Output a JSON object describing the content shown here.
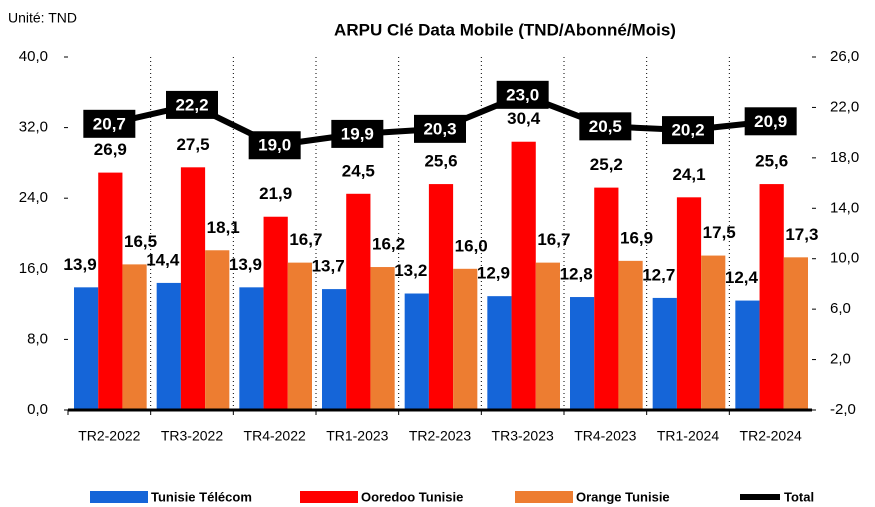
{
  "chart_data": {
    "type": "bar",
    "title": "ARPU Clé Data Mobile (TND/Abonné/Mois)",
    "subtitle": "Unité: TND",
    "categories": [
      "TR2-2022",
      "TR3-2022",
      "TR4-2022",
      "TR1-2023",
      "TR2-2023",
      "TR3-2023",
      "TR4-2023",
      "TR1-2024",
      "TR2-2024"
    ],
    "series": [
      {
        "name": "Tunisie Télécom",
        "color": "#1565d8",
        "values": [
          13.9,
          14.4,
          13.9,
          13.7,
          13.2,
          12.9,
          12.8,
          12.7,
          12.4
        ],
        "value_labels": [
          "13,9",
          "14,4",
          "13,9",
          "13,7",
          "13,2",
          "12,9",
          "12,8",
          "12,7",
          "12,4"
        ]
      },
      {
        "name": "Ooredoo Tunisie",
        "color": "#ff0000",
        "values": [
          26.9,
          27.5,
          21.9,
          24.5,
          25.6,
          30.4,
          25.2,
          24.1,
          25.6
        ],
        "value_labels": [
          "26,9",
          "27,5",
          "21,9",
          "24,5",
          "25,6",
          "30,4",
          "25,2",
          "24,1",
          "25,6"
        ]
      },
      {
        "name": "Orange Tunisie",
        "color": "#ed7d31",
        "values": [
          16.5,
          18.1,
          16.7,
          16.2,
          16.0,
          16.7,
          16.9,
          17.5,
          17.3
        ],
        "value_labels": [
          "16,5",
          "18,1",
          "16,7",
          "16,2",
          "16,0",
          "16,7",
          "16,9",
          "17,5",
          "17,3"
        ]
      },
      {
        "name": "Total",
        "color": "#000000",
        "type": "line",
        "axis": "y2",
        "values": [
          20.7,
          22.2,
          19.0,
          19.9,
          20.3,
          23.0,
          20.5,
          20.2,
          20.9
        ],
        "value_labels": [
          "20,7",
          "22,2",
          "19,0",
          "19,9",
          "20,3",
          "23,0",
          "20,5",
          "20,2",
          "20,9"
        ]
      }
    ],
    "ylim": [
      0,
      40
    ],
    "yticks": [
      {
        "value": 0,
        "label": "0,0"
      },
      {
        "value": 8,
        "label": "8,0"
      },
      {
        "value": 16,
        "label": "16,0"
      },
      {
        "value": 24,
        "label": "24,0"
      },
      {
        "value": 32,
        "label": "32,0"
      },
      {
        "value": 40,
        "label": "40,0"
      }
    ],
    "y2lim": [
      -2,
      26
    ],
    "y2ticks": [
      {
        "value": -2,
        "label": "-2,0"
      },
      {
        "value": 2,
        "label": "2,0"
      },
      {
        "value": 6,
        "label": "6,0"
      },
      {
        "value": 10,
        "label": "10,0"
      },
      {
        "value": 14,
        "label": "14,0"
      },
      {
        "value": 18,
        "label": "18,0"
      },
      {
        "value": 22,
        "label": "22,0"
      },
      {
        "value": 26,
        "label": "26,0"
      }
    ],
    "legend": "bottom"
  }
}
